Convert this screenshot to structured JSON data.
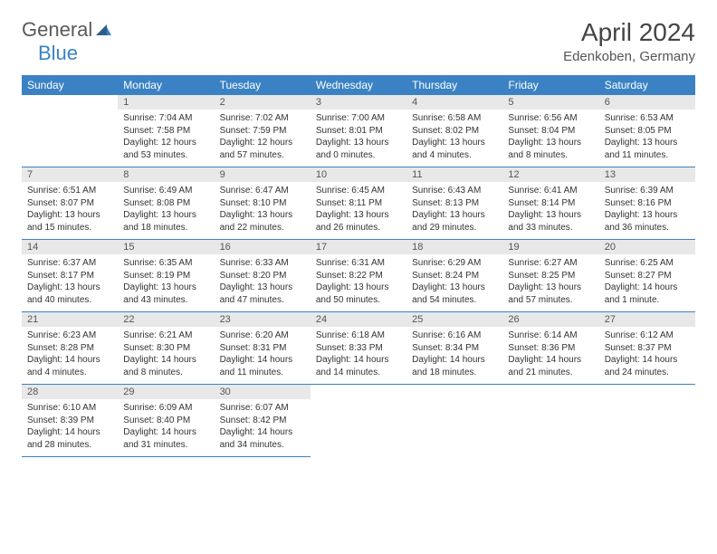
{
  "logo": {
    "text1": "General",
    "text2": "Blue"
  },
  "title": "April 2024",
  "location": "Edenkoben, Germany",
  "colors": {
    "header_bg": "#3b82c4",
    "header_text": "#ffffff",
    "daynum_bg": "#e8e8e8",
    "border": "#3b82c4",
    "body_text": "#333333"
  },
  "weekdays": [
    "Sunday",
    "Monday",
    "Tuesday",
    "Wednesday",
    "Thursday",
    "Friday",
    "Saturday"
  ],
  "start_offset": 1,
  "days": [
    {
      "n": 1,
      "sr": "7:04 AM",
      "ss": "7:58 PM",
      "dl": "12 hours and 53 minutes."
    },
    {
      "n": 2,
      "sr": "7:02 AM",
      "ss": "7:59 PM",
      "dl": "12 hours and 57 minutes."
    },
    {
      "n": 3,
      "sr": "7:00 AM",
      "ss": "8:01 PM",
      "dl": "13 hours and 0 minutes."
    },
    {
      "n": 4,
      "sr": "6:58 AM",
      "ss": "8:02 PM",
      "dl": "13 hours and 4 minutes."
    },
    {
      "n": 5,
      "sr": "6:56 AM",
      "ss": "8:04 PM",
      "dl": "13 hours and 8 minutes."
    },
    {
      "n": 6,
      "sr": "6:53 AM",
      "ss": "8:05 PM",
      "dl": "13 hours and 11 minutes."
    },
    {
      "n": 7,
      "sr": "6:51 AM",
      "ss": "8:07 PM",
      "dl": "13 hours and 15 minutes."
    },
    {
      "n": 8,
      "sr": "6:49 AM",
      "ss": "8:08 PM",
      "dl": "13 hours and 18 minutes."
    },
    {
      "n": 9,
      "sr": "6:47 AM",
      "ss": "8:10 PM",
      "dl": "13 hours and 22 minutes."
    },
    {
      "n": 10,
      "sr": "6:45 AM",
      "ss": "8:11 PM",
      "dl": "13 hours and 26 minutes."
    },
    {
      "n": 11,
      "sr": "6:43 AM",
      "ss": "8:13 PM",
      "dl": "13 hours and 29 minutes."
    },
    {
      "n": 12,
      "sr": "6:41 AM",
      "ss": "8:14 PM",
      "dl": "13 hours and 33 minutes."
    },
    {
      "n": 13,
      "sr": "6:39 AM",
      "ss": "8:16 PM",
      "dl": "13 hours and 36 minutes."
    },
    {
      "n": 14,
      "sr": "6:37 AM",
      "ss": "8:17 PM",
      "dl": "13 hours and 40 minutes."
    },
    {
      "n": 15,
      "sr": "6:35 AM",
      "ss": "8:19 PM",
      "dl": "13 hours and 43 minutes."
    },
    {
      "n": 16,
      "sr": "6:33 AM",
      "ss": "8:20 PM",
      "dl": "13 hours and 47 minutes."
    },
    {
      "n": 17,
      "sr": "6:31 AM",
      "ss": "8:22 PM",
      "dl": "13 hours and 50 minutes."
    },
    {
      "n": 18,
      "sr": "6:29 AM",
      "ss": "8:24 PM",
      "dl": "13 hours and 54 minutes."
    },
    {
      "n": 19,
      "sr": "6:27 AM",
      "ss": "8:25 PM",
      "dl": "13 hours and 57 minutes."
    },
    {
      "n": 20,
      "sr": "6:25 AM",
      "ss": "8:27 PM",
      "dl": "14 hours and 1 minute."
    },
    {
      "n": 21,
      "sr": "6:23 AM",
      "ss": "8:28 PM",
      "dl": "14 hours and 4 minutes."
    },
    {
      "n": 22,
      "sr": "6:21 AM",
      "ss": "8:30 PM",
      "dl": "14 hours and 8 minutes."
    },
    {
      "n": 23,
      "sr": "6:20 AM",
      "ss": "8:31 PM",
      "dl": "14 hours and 11 minutes."
    },
    {
      "n": 24,
      "sr": "6:18 AM",
      "ss": "8:33 PM",
      "dl": "14 hours and 14 minutes."
    },
    {
      "n": 25,
      "sr": "6:16 AM",
      "ss": "8:34 PM",
      "dl": "14 hours and 18 minutes."
    },
    {
      "n": 26,
      "sr": "6:14 AM",
      "ss": "8:36 PM",
      "dl": "14 hours and 21 minutes."
    },
    {
      "n": 27,
      "sr": "6:12 AM",
      "ss": "8:37 PM",
      "dl": "14 hours and 24 minutes."
    },
    {
      "n": 28,
      "sr": "6:10 AM",
      "ss": "8:39 PM",
      "dl": "14 hours and 28 minutes."
    },
    {
      "n": 29,
      "sr": "6:09 AM",
      "ss": "8:40 PM",
      "dl": "14 hours and 31 minutes."
    },
    {
      "n": 30,
      "sr": "6:07 AM",
      "ss": "8:42 PM",
      "dl": "14 hours and 34 minutes."
    }
  ],
  "labels": {
    "sunrise": "Sunrise:",
    "sunset": "Sunset:",
    "daylight": "Daylight:"
  }
}
